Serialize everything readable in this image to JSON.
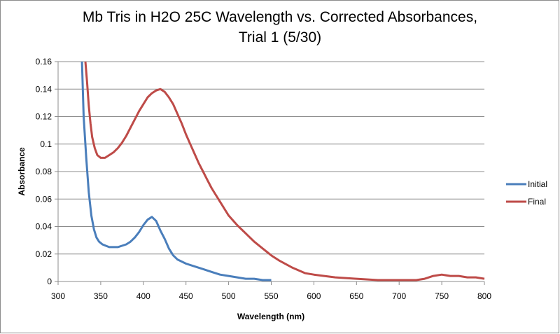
{
  "chart_data": {
    "type": "line",
    "title": "Mb Tris in H2O 25C Wavelength vs. Corrected Absorbances, Trial 1 (5/30)",
    "title_lines": [
      "Mb Tris in H2O 25C Wavelength vs. Corrected Absorbances,",
      "Trial 1 (5/30)"
    ],
    "xlabel": "Wavelength (nm)",
    "ylabel": "Absorbance",
    "xlim": [
      300,
      800
    ],
    "ylim": [
      0,
      0.16
    ],
    "xticks": [
      "300",
      "350",
      "400",
      "450",
      "500",
      "550",
      "600",
      "650",
      "700",
      "750",
      "800"
    ],
    "yticks": [
      "0",
      "0.02",
      "0.04",
      "0.06",
      "0.08",
      "0.1",
      "0.12",
      "0.14",
      "0.16"
    ],
    "grid": "horizontal",
    "legend_position": "right",
    "series": [
      {
        "name": "Initial",
        "color": "#4a7ebb",
        "x": [
          328,
          330,
          333,
          336,
          339,
          342,
          345,
          348,
          352,
          356,
          360,
          365,
          370,
          375,
          380,
          385,
          390,
          395,
          400,
          405,
          410,
          415,
          420,
          425,
          430,
          435,
          440,
          450,
          460,
          470,
          480,
          490,
          500,
          510,
          520,
          530,
          540,
          550
        ],
        "y": [
          0.16,
          0.12,
          0.09,
          0.065,
          0.048,
          0.038,
          0.032,
          0.029,
          0.027,
          0.026,
          0.025,
          0.025,
          0.025,
          0.026,
          0.027,
          0.029,
          0.032,
          0.036,
          0.041,
          0.045,
          0.047,
          0.044,
          0.037,
          0.031,
          0.024,
          0.019,
          0.016,
          0.013,
          0.011,
          0.009,
          0.007,
          0.005,
          0.004,
          0.003,
          0.002,
          0.002,
          0.001,
          0.001
        ]
      },
      {
        "name": "Final",
        "color": "#be4b48",
        "x": [
          332,
          334,
          336,
          338,
          340,
          343,
          346,
          350,
          355,
          360,
          365,
          370,
          375,
          380,
          385,
          390,
          395,
          400,
          405,
          410,
          415,
          420,
          425,
          430,
          435,
          440,
          445,
          450,
          455,
          460,
          465,
          470,
          475,
          480,
          485,
          490,
          495,
          500,
          510,
          520,
          530,
          540,
          550,
          560,
          575,
          590,
          600,
          625,
          650,
          675,
          700,
          720,
          730,
          740,
          750,
          760,
          770,
          780,
          790,
          800
        ],
        "y": [
          0.16,
          0.145,
          0.128,
          0.115,
          0.105,
          0.097,
          0.092,
          0.09,
          0.09,
          0.092,
          0.094,
          0.097,
          0.101,
          0.106,
          0.112,
          0.118,
          0.124,
          0.129,
          0.134,
          0.137,
          0.139,
          0.14,
          0.138,
          0.134,
          0.129,
          0.122,
          0.115,
          0.107,
          0.1,
          0.093,
          0.086,
          0.08,
          0.074,
          0.068,
          0.063,
          0.058,
          0.053,
          0.048,
          0.041,
          0.035,
          0.029,
          0.024,
          0.019,
          0.015,
          0.01,
          0.006,
          0.005,
          0.003,
          0.002,
          0.001,
          0.001,
          0.001,
          0.002,
          0.004,
          0.005,
          0.004,
          0.004,
          0.003,
          0.003,
          0.002
        ]
      }
    ]
  }
}
